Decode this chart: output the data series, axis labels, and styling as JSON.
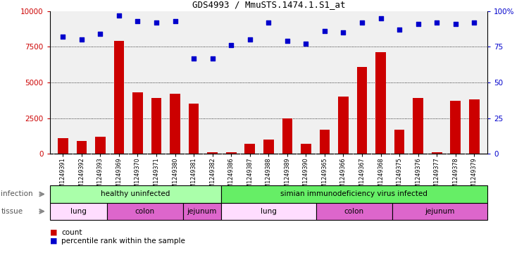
{
  "title": "GDS4993 / MmuSTS.1474.1.S1_at",
  "samples": [
    "GSM1249391",
    "GSM1249392",
    "GSM1249393",
    "GSM1249369",
    "GSM1249370",
    "GSM1249371",
    "GSM1249380",
    "GSM1249381",
    "GSM1249382",
    "GSM1249386",
    "GSM1249387",
    "GSM1249388",
    "GSM1249389",
    "GSM1249390",
    "GSM1249365",
    "GSM1249366",
    "GSM1249367",
    "GSM1249368",
    "GSM1249375",
    "GSM1249376",
    "GSM1249377",
    "GSM1249378",
    "GSM1249379"
  ],
  "counts": [
    1100,
    900,
    1200,
    7900,
    4300,
    3900,
    4200,
    3500,
    100,
    100,
    700,
    1000,
    2500,
    700,
    1700,
    4000,
    6100,
    7100,
    1700,
    3900,
    100,
    3700,
    3800
  ],
  "percentiles": [
    82,
    80,
    84,
    97,
    93,
    92,
    93,
    67,
    67,
    76,
    80,
    92,
    79,
    77,
    86,
    85,
    92,
    95,
    87,
    91,
    92,
    91,
    92
  ],
  "bar_color": "#cc0000",
  "dot_color": "#0000cc",
  "bg_color": "#d8d8d8",
  "plot_bg": "#f0f0f0",
  "ylim_left": [
    0,
    10000
  ],
  "ylim_right": [
    0,
    100
  ],
  "yticks_left": [
    0,
    2500,
    5000,
    7500,
    10000
  ],
  "yticks_right": [
    0,
    25,
    50,
    75,
    100
  ],
  "grid_values": [
    2500,
    5000,
    7500
  ],
  "legend_count_label": "count",
  "legend_pct_label": "percentile rank within the sample",
  "infection_label": "infection",
  "tissue_label": "tissue",
  "inf_groups": [
    {
      "label": "healthy uninfected",
      "start": 0,
      "end": 9,
      "color": "#aaffaa"
    },
    {
      "label": "simian immunodeficiency virus infected",
      "start": 9,
      "end": 23,
      "color": "#66ee66"
    }
  ],
  "tissue_groups": [
    {
      "label": "lung",
      "start": 0,
      "end": 3,
      "color": "#ffddff"
    },
    {
      "label": "colon",
      "start": 3,
      "end": 7,
      "color": "#dd66cc"
    },
    {
      "label": "jejunum",
      "start": 7,
      "end": 9,
      "color": "#dd66cc"
    },
    {
      "label": "lung",
      "start": 9,
      "end": 14,
      "color": "#ffddff"
    },
    {
      "label": "colon",
      "start": 14,
      "end": 18,
      "color": "#dd66cc"
    },
    {
      "label": "jejunum",
      "start": 18,
      "end": 23,
      "color": "#dd66cc"
    }
  ]
}
